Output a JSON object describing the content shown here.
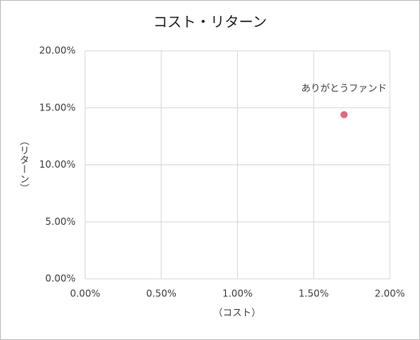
{
  "chart_data": {
    "type": "scatter",
    "title": "コスト・リターン",
    "x_label": "（コスト）",
    "y_label": "（リターン）",
    "series": [
      {
        "name": "ありがとうファンド",
        "color": "#e0697f",
        "x": [
          1.7
        ],
        "values": [
          14.4
        ]
      }
    ],
    "xlim": [
      0,
      2
    ],
    "xticks": [
      {
        "value": 0,
        "label": "0.00%"
      },
      {
        "value": 0.5,
        "label": "0.50%"
      },
      {
        "value": 1,
        "label": "1.00%"
      },
      {
        "value": 1.5,
        "label": "1.50%"
      },
      {
        "value": 2,
        "label": "2.00%"
      }
    ],
    "ylim": [
      0,
      20
    ],
    "yticks": [
      {
        "value": 0,
        "label": "0.00%"
      },
      {
        "value": 5,
        "label": "5.00%"
      },
      {
        "value": 10,
        "label": "10.00%"
      },
      {
        "value": 15,
        "label": "15.00%"
      },
      {
        "value": 20,
        "label": "20.00%"
      }
    ],
    "grid": true
  }
}
